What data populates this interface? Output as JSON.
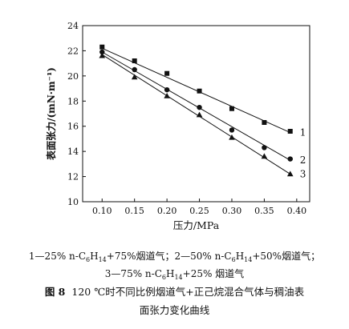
{
  "chart_data": {
    "type": "line",
    "xlabel": "压力/MPa",
    "ylabel": "表面张力/(mN·m⁻¹)",
    "xlim": [
      0.07,
      0.42
    ],
    "ylim": [
      10,
      24
    ],
    "xticks": [
      "0.10",
      "0.15",
      "0.20",
      "0.25",
      "0.30",
      "0.35",
      "0.40"
    ],
    "yticks": [
      "10",
      "12",
      "14",
      "16",
      "18",
      "20",
      "22",
      "24"
    ],
    "grid": false,
    "series": [
      {
        "name": "1",
        "marker": "square",
        "x": [
          0.1,
          0.15,
          0.2,
          0.25,
          0.3,
          0.35,
          0.39
        ],
        "y": [
          22.3,
          21.2,
          20.2,
          18.8,
          17.4,
          16.3,
          15.6
        ],
        "fit": [
          [
            0.1,
            22.2
          ],
          [
            0.39,
            15.5
          ]
        ]
      },
      {
        "name": "2",
        "marker": "circle",
        "x": [
          0.1,
          0.15,
          0.2,
          0.25,
          0.3,
          0.35,
          0.39
        ],
        "y": [
          21.9,
          20.5,
          18.9,
          17.5,
          15.7,
          14.3,
          13.4
        ],
        "fit": [
          [
            0.1,
            21.9
          ],
          [
            0.39,
            13.3
          ]
        ]
      },
      {
        "name": "3",
        "marker": "triangle",
        "x": [
          0.1,
          0.15,
          0.2,
          0.25,
          0.3,
          0.35,
          0.39
        ],
        "y": [
          21.6,
          19.9,
          18.4,
          16.9,
          15.1,
          13.6,
          12.2
        ],
        "fit": [
          [
            0.1,
            21.7
          ],
          [
            0.39,
            12.2
          ]
        ]
      }
    ]
  },
  "legend": {
    "line1": {
      "p1": "1—25% n-C",
      "s1": "6",
      "p2": "H",
      "s2": "14",
      "p3": "+75%烟道气；2—50% n-C",
      "s3": "6",
      "p4": "H",
      "s4": "14",
      "p5": "+50%烟道气；"
    },
    "line2": {
      "p1": "3—75% n-C",
      "s1": "6",
      "p2": "H",
      "s2": "14",
      "p3": "+25% 烟道气"
    }
  },
  "caption": {
    "figure_label": "图 8",
    "line1": "120 ℃时不同比例烟道气+正己烷混合气体与稠油表",
    "line2": "面张力变化曲线"
  }
}
